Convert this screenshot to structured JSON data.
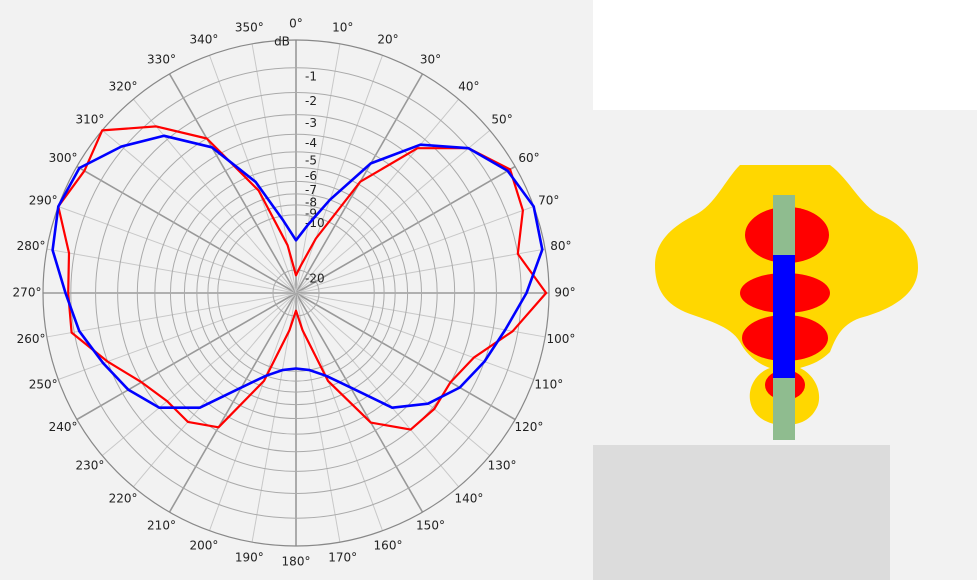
{
  "chart_data": {
    "type": "polar",
    "ylabel": "dB",
    "ylim": [
      -40,
      0
    ],
    "yticks": [
      -1,
      -2,
      -3,
      -4,
      -5,
      -6,
      -7,
      -8,
      -9,
      -10,
      -20
    ],
    "xticks": [
      {
        "value": 0,
        "label": "0°"
      },
      {
        "value": 10,
        "label": "10°"
      },
      {
        "value": 20,
        "label": "20°"
      },
      {
        "value": 30,
        "label": "30°"
      },
      {
        "value": 40,
        "label": "40°"
      },
      {
        "value": 50,
        "label": "50°"
      },
      {
        "value": 60,
        "label": "60°"
      },
      {
        "value": 70,
        "label": "70°"
      },
      {
        "value": 80,
        "label": "80°"
      },
      {
        "value": 90,
        "label": "90°"
      },
      {
        "value": 100,
        "label": "100°"
      },
      {
        "value": 110,
        "label": "110°"
      },
      {
        "value": 120,
        "label": "120°"
      },
      {
        "value": 130,
        "label": "130°"
      },
      {
        "value": 140,
        "label": "140°"
      },
      {
        "value": 150,
        "label": "150°"
      },
      {
        "value": 160,
        "label": "160°"
      },
      {
        "value": 170,
        "label": "170°"
      },
      {
        "value": 180,
        "label": "180°"
      },
      {
        "value": 190,
        "label": "190°"
      },
      {
        "value": 200,
        "label": "200°"
      },
      {
        "value": 210,
        "label": "210°"
      },
      {
        "value": 220,
        "label": "220°"
      },
      {
        "value": 230,
        "label": "230°"
      },
      {
        "value": 240,
        "label": "240°"
      },
      {
        "value": 250,
        "label": "250°"
      },
      {
        "value": 260,
        "label": "260°"
      },
      {
        "value": 270,
        "label": "270°"
      },
      {
        "value": 280,
        "label": "280°"
      },
      {
        "value": 290,
        "label": "290°"
      },
      {
        "value": 300,
        "label": "300°"
      },
      {
        "value": 310,
        "label": "310°"
      },
      {
        "value": 320,
        "label": "320°"
      },
      {
        "value": 330,
        "label": "330°"
      },
      {
        "value": 340,
        "label": "340°"
      },
      {
        "value": 350,
        "label": "350°"
      }
    ],
    "x": [
      0,
      10,
      20,
      30,
      40,
      50,
      60,
      70,
      80,
      90,
      100,
      110,
      120,
      130,
      140,
      150,
      160,
      170,
      180,
      190,
      200,
      210,
      220,
      230,
      240,
      250,
      260,
      270,
      280,
      290,
      300,
      310,
      320,
      330,
      340,
      350
    ],
    "series": [
      {
        "color": "#ff0000",
        "values": [
          -22,
          -18.5,
          -12.5,
          -5.8,
          -2.5,
          -1,
          -0.2,
          -0.4,
          -1,
          -0.1,
          -1.2,
          -2.5,
          -3,
          -2.9,
          -3,
          -4.5,
          -8.5,
          -16,
          -22,
          -16,
          -8.5,
          -4.2,
          -3.5,
          -3.5,
          -3,
          -2,
          -0.9,
          -0.9,
          -0.8,
          0,
          -0.3,
          0,
          -1.3,
          -3,
          -7.2,
          -14
        ]
      },
      {
        "color": "#0000ff",
        "values": [
          -13.3,
          -11,
          -8,
          -4.5,
          -2.3,
          -1,
          -0.3,
          0,
          -0.1,
          -0.8,
          -1.5,
          -2,
          -2.5,
          -3.3,
          -4.5,
          -7.2,
          -9,
          -10,
          -10.3,
          -10,
          -9,
          -7.2,
          -4.5,
          -3,
          -2.3,
          -1.8,
          -1.2,
          -0.8,
          -0.2,
          0,
          -0.1,
          -0.9,
          -1.8,
          -3.5,
          -6.5,
          -10.5
        ]
      }
    ]
  }
}
